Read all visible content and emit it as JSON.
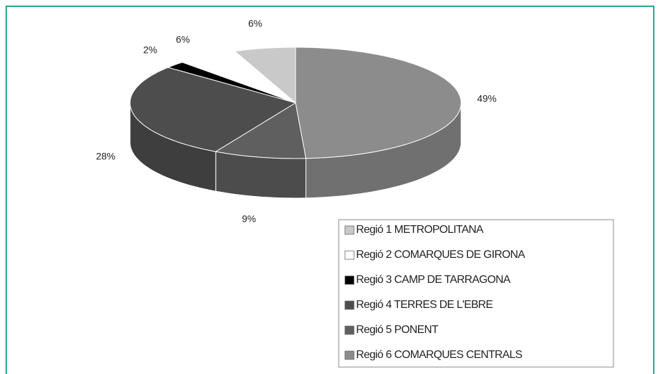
{
  "chart_data": {
    "type": "pie3d",
    "categories": [
      "Regió 1 METROPOLITANA",
      "Regió 2 COMARQUES DE GIRONA",
      "Regió 3 CAMP DE TARRAGONA",
      "Regió 4 TERRES DE L'EBRE",
      "Regió 5 PONENT",
      "Regió 6 COMARQUES CENTRALS"
    ],
    "series": [
      {
        "values": [
          6,
          6,
          2,
          28,
          9,
          49
        ],
        "value_labels": [
          "6%",
          "6%",
          "2%",
          "28%",
          "9%",
          "49%"
        ],
        "colors": [
          "#c9c9c9",
          "#ffffff",
          "#000000",
          "#4d4d4d",
          "#5f5f5f",
          "#8c8c8c"
        ]
      }
    ],
    "legend": "bottom-right"
  }
}
